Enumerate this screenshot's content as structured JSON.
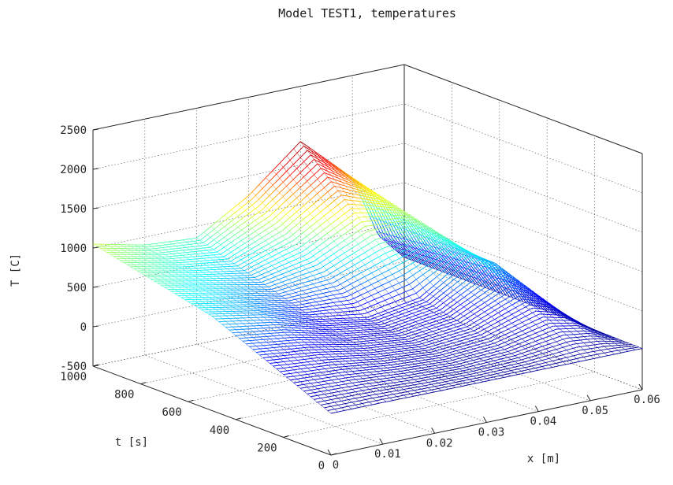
{
  "chart_data": {
    "type": "surface",
    "title": "Model TEST1, temperatures",
    "xlabel": "x [m]",
    "ylabel": "t [s]",
    "zlabel": "T [C]",
    "x_ticks": [
      "0",
      "0.01",
      "0.02",
      "0.03",
      "0.04",
      "0.05",
      "0.06"
    ],
    "y_ticks": [
      "0",
      "200",
      "400",
      "600",
      "800",
      "1000"
    ],
    "z_ticks": [
      "-500",
      "0",
      "500",
      "1000",
      "1500",
      "2000",
      "2500"
    ],
    "xlim": [
      0,
      0.06
    ],
    "ylim": [
      0,
      1000
    ],
    "zlim": [
      -500,
      2500
    ],
    "grid": true,
    "colormap": "jet",
    "colormap_colors": [
      "#00008f",
      "#0000ff",
      "#00ffff",
      "#ffff00",
      "#ff0000",
      "#800000"
    ],
    "surface_profiles": [
      {
        "t": 0,
        "x": [
          0,
          0.01,
          0.02,
          0.03,
          0.04,
          0.05,
          0.055,
          0.06
        ],
        "T": [
          30,
          30,
          25,
          25,
          25,
          25,
          25,
          25
        ]
      },
      {
        "t": 500,
        "x": [
          0,
          0.01,
          0.02,
          0.03,
          0.04,
          0.05,
          0.055,
          0.06
        ],
        "T": [
          700,
          580,
          380,
          270,
          380,
          800,
          600,
          50
        ]
      },
      {
        "t": 1000,
        "x": [
          0,
          0.01,
          0.02,
          0.03,
          0.04,
          0.05,
          0.055,
          0.06
        ],
        "T": [
          1050,
          900,
          850,
          1250,
          1800,
          1200,
          400,
          50
        ]
      }
    ]
  }
}
